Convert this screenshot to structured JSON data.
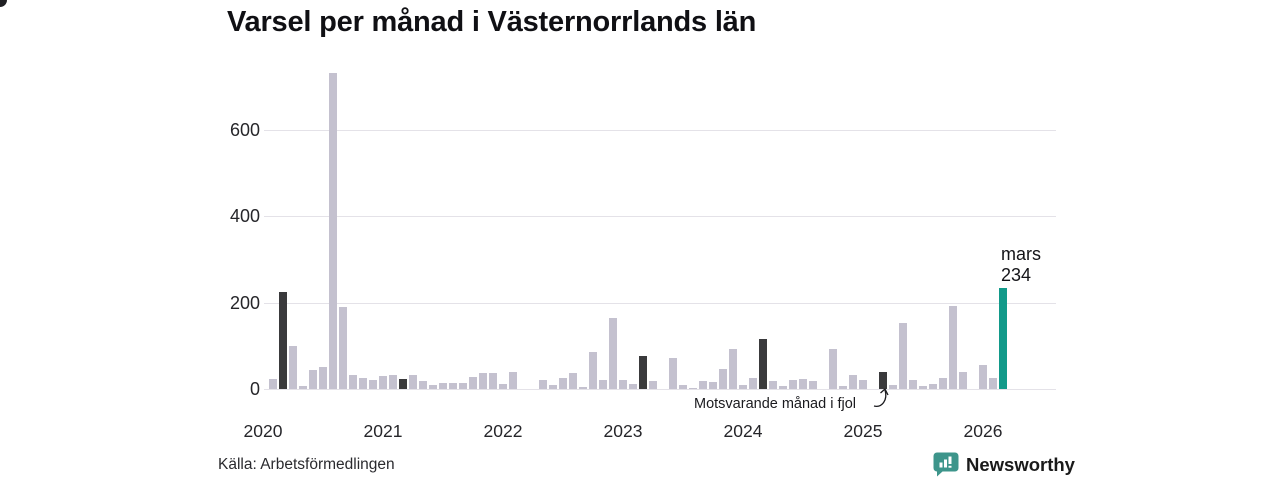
{
  "title": "Varsel per månad i Västernorrlands län",
  "chart_data": {
    "type": "bar",
    "title": "Varsel per månad i Västernorrlands län",
    "xlabel": "",
    "ylabel": "",
    "yticks": [
      0,
      200,
      400,
      600
    ],
    "ylim": [
      0,
      740
    ],
    "grid": "horizontal",
    "categories_note": "monthly values January–December per year (2026 has Jan–Mar)",
    "series": [
      {
        "year": "2020",
        "values": [
          0,
          24,
          225,
          100,
          8,
          45,
          50,
          730,
          190,
          33,
          26,
          20
        ]
      },
      {
        "year": "2021",
        "values": [
          30,
          32,
          23,
          32,
          19,
          9,
          13,
          15,
          13,
          28,
          37,
          37
        ]
      },
      {
        "year": "2022",
        "values": [
          11,
          39,
          0,
          0,
          21,
          10,
          25,
          37,
          5,
          85,
          20,
          164
        ]
      },
      {
        "year": "2023",
        "values": [
          21,
          12,
          77,
          19,
          0,
          72,
          9,
          3,
          19,
          16,
          46,
          92
        ]
      },
      {
        "year": "2024",
        "values": [
          9,
          25,
          115,
          19,
          7,
          21,
          22,
          18,
          0,
          92,
          8,
          32
        ]
      },
      {
        "year": "2025",
        "values": [
          20,
          0,
          40,
          10,
          152,
          21,
          7,
          11,
          26,
          193,
          40,
          0
        ]
      },
      {
        "year": "2026",
        "values": [
          55,
          25,
          234
        ]
      }
    ],
    "dark_month_index": 2,
    "annotation": "Motsvarande månad i fjol",
    "highlight": {
      "year": "2026",
      "month_label": "mars",
      "value": 234
    }
  },
  "colors": {
    "bar_light": "#c4c1cf",
    "bar_dark": "#3a3a3c",
    "bar_highlight": "#129a8a",
    "grid": "#e4e2e8",
    "brand_teal": "#36897e",
    "brand_icon": "#3d958b"
  },
  "footer": {
    "source": "Källa: Arbetsförmedlingen",
    "brand": "Newsworthy"
  }
}
